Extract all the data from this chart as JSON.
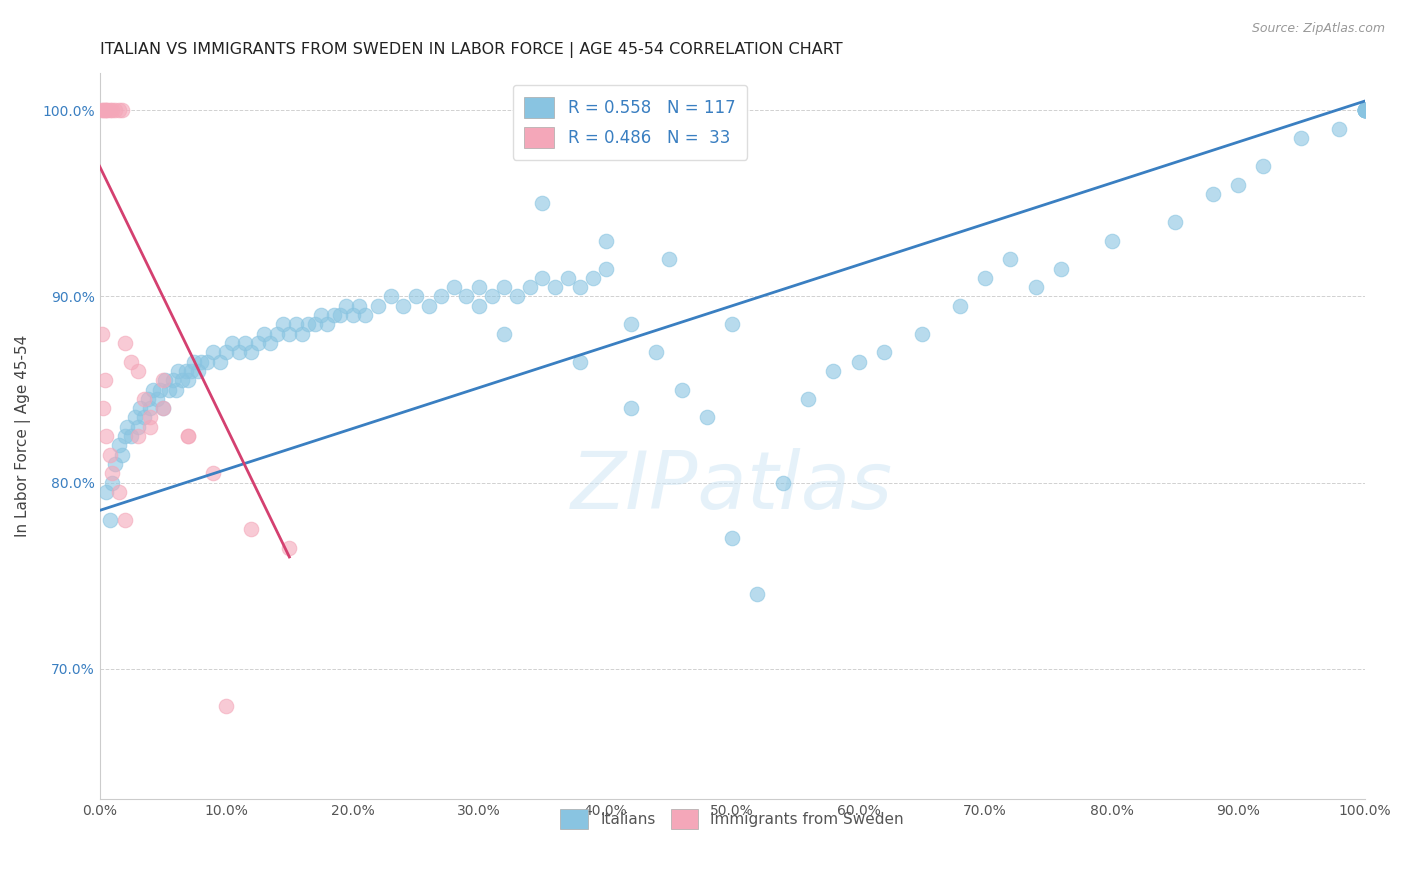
{
  "title": "ITALIAN VS IMMIGRANTS FROM SWEDEN IN LABOR FORCE | AGE 45-54 CORRELATION CHART",
  "source": "Source: ZipAtlas.com",
  "ylabel": "In Labor Force | Age 45-54",
  "xlim": [
    0,
    100
  ],
  "ylim": [
    63,
    102
  ],
  "xticks": [
    0,
    10,
    20,
    30,
    40,
    50,
    60,
    70,
    80,
    90,
    100
  ],
  "xtick_labels": [
    "0.0%",
    "10.0%",
    "20.0%",
    "30.0%",
    "40.0%",
    "50.0%",
    "60.0%",
    "70.0%",
    "80.0%",
    "90.0%",
    "100.0%"
  ],
  "yticks": [
    70,
    80,
    90,
    100
  ],
  "ytick_labels": [
    "70.0%",
    "80.0%",
    "90.0%",
    "100.0%"
  ],
  "blue_color": "#89c4e1",
  "pink_color": "#f4a7b9",
  "blue_line_color": "#3a7fc1",
  "pink_line_color": "#d44070",
  "legend_text_color": "#3a7fc1",
  "watermark": "ZIPatlas",
  "blue_R": "R = 0.558",
  "blue_N": "N = 117",
  "pink_R": "R = 0.486",
  "pink_N": "N =  33",
  "blue_x": [
    0.5,
    0.8,
    1.0,
    1.2,
    1.5,
    1.8,
    2.0,
    2.2,
    2.5,
    2.8,
    3.0,
    3.2,
    3.5,
    3.8,
    4.0,
    4.2,
    4.5,
    4.8,
    5.0,
    5.2,
    5.5,
    5.8,
    6.0,
    6.2,
    6.5,
    6.8,
    7.0,
    7.2,
    7.5,
    7.8,
    8.0,
    8.5,
    9.0,
    9.5,
    10.0,
    10.5,
    11.0,
    11.5,
    12.0,
    12.5,
    13.0,
    13.5,
    14.0,
    14.5,
    15.0,
    15.5,
    16.0,
    16.5,
    17.0,
    17.5,
    18.0,
    18.5,
    19.0,
    19.5,
    20.0,
    20.5,
    21.0,
    22.0,
    23.0,
    24.0,
    25.0,
    26.0,
    27.0,
    28.0,
    29.0,
    30.0,
    31.0,
    32.0,
    33.0,
    34.0,
    35.0,
    36.0,
    37.0,
    38.0,
    39.0,
    40.0,
    42.0,
    44.0,
    46.0,
    48.0,
    50.0,
    52.0,
    54.0,
    56.0,
    58.0,
    60.0,
    62.0,
    65.0,
    68.0,
    70.0,
    72.0,
    74.0,
    76.0,
    80.0,
    85.0,
    88.0,
    90.0,
    92.0,
    95.0,
    98.0,
    100.0,
    100.0,
    100.0,
    100.0,
    100.0,
    100.0,
    100.0,
    100.0,
    100.0,
    40.0,
    35.0,
    45.0,
    42.0,
    30.0,
    32.0,
    38.0,
    50.0
  ],
  "blue_y": [
    79.5,
    78.0,
    80.0,
    81.0,
    82.0,
    81.5,
    82.5,
    83.0,
    82.5,
    83.5,
    83.0,
    84.0,
    83.5,
    84.5,
    84.0,
    85.0,
    84.5,
    85.0,
    84.0,
    85.5,
    85.0,
    85.5,
    85.0,
    86.0,
    85.5,
    86.0,
    85.5,
    86.0,
    86.5,
    86.0,
    86.5,
    86.5,
    87.0,
    86.5,
    87.0,
    87.5,
    87.0,
    87.5,
    87.0,
    87.5,
    88.0,
    87.5,
    88.0,
    88.5,
    88.0,
    88.5,
    88.0,
    88.5,
    88.5,
    89.0,
    88.5,
    89.0,
    89.0,
    89.5,
    89.0,
    89.5,
    89.0,
    89.5,
    90.0,
    89.5,
    90.0,
    89.5,
    90.0,
    90.5,
    90.0,
    90.5,
    90.0,
    90.5,
    90.0,
    90.5,
    91.0,
    90.5,
    91.0,
    90.5,
    91.0,
    91.5,
    84.0,
    87.0,
    85.0,
    83.5,
    77.0,
    74.0,
    80.0,
    84.5,
    86.0,
    86.5,
    87.0,
    88.0,
    89.5,
    91.0,
    92.0,
    90.5,
    91.5,
    93.0,
    94.0,
    95.5,
    96.0,
    97.0,
    98.5,
    99.0,
    100.0,
    100.0,
    100.0,
    100.0,
    100.0,
    100.0,
    100.0,
    100.0,
    100.0,
    93.0,
    95.0,
    92.0,
    88.5,
    89.5,
    88.0,
    86.5,
    88.5
  ],
  "pink_x": [
    0.2,
    0.3,
    0.4,
    0.5,
    0.6,
    0.8,
    1.0,
    1.2,
    1.5,
    1.8,
    2.0,
    2.5,
    3.0,
    3.5,
    4.0,
    5.0,
    7.0,
    9.0,
    12.0,
    15.0,
    0.3,
    0.5,
    0.8,
    1.0,
    1.5,
    2.0,
    3.0,
    4.0,
    5.0,
    7.0,
    10.0,
    0.2,
    0.4
  ],
  "pink_y": [
    100.0,
    100.0,
    100.0,
    100.0,
    100.0,
    100.0,
    100.0,
    100.0,
    100.0,
    100.0,
    87.5,
    86.5,
    86.0,
    84.5,
    83.0,
    85.5,
    82.5,
    80.5,
    77.5,
    76.5,
    84.0,
    82.5,
    81.5,
    80.5,
    79.5,
    78.0,
    82.5,
    83.5,
    84.0,
    82.5,
    68.0,
    88.0,
    85.5
  ],
  "blue_trend_x0": 0.0,
  "blue_trend_x1": 100.0,
  "blue_trend_y0": 78.5,
  "blue_trend_y1": 100.5,
  "pink_trend_x0": 0.0,
  "pink_trend_x1": 15.0,
  "pink_trend_y0": 97.0,
  "pink_trend_y1": 76.0
}
